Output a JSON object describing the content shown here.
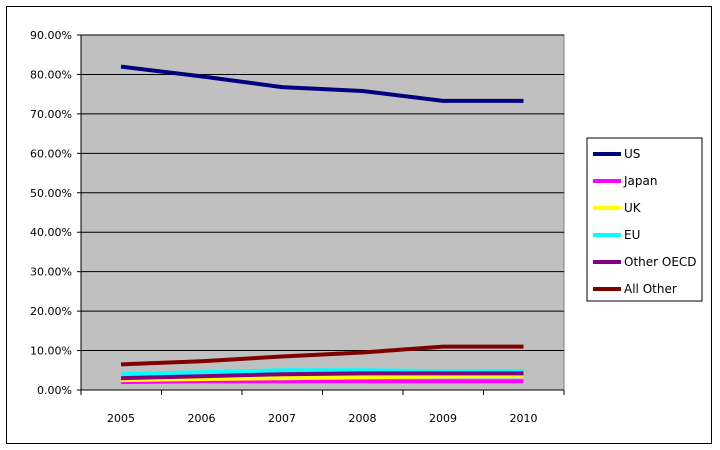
{
  "chart_data": {
    "type": "line",
    "title": "",
    "xlabel": "",
    "ylabel": "",
    "x": [
      "2005",
      "2006",
      "2007",
      "2008",
      "2009",
      "2010"
    ],
    "ylim": [
      0,
      0.9
    ],
    "y_ticks": [
      "0.00%",
      "10.00%",
      "20.00%",
      "30.00%",
      "40.00%",
      "50.00%",
      "60.00%",
      "70.00%",
      "80.00%",
      "90.00%"
    ],
    "grid": "horizontal",
    "legend_position": "right",
    "plot_background": "#c0c0c0",
    "series": [
      {
        "name": "US",
        "color": "#000080",
        "values": [
          0.82,
          0.795,
          0.768,
          0.758,
          0.733,
          0.733
        ]
      },
      {
        "name": "Japan",
        "color": "#ff00ff",
        "values": [
          0.02,
          0.022,
          0.022,
          0.022,
          0.022,
          0.022
        ]
      },
      {
        "name": "UK",
        "color": "#ffff00",
        "values": [
          0.025,
          0.028,
          0.03,
          0.032,
          0.035,
          0.036
        ]
      },
      {
        "name": "EU",
        "color": "#00ffff",
        "values": [
          0.04,
          0.045,
          0.05,
          0.05,
          0.048,
          0.048
        ]
      },
      {
        "name": "Other OECD",
        "color": "#800080",
        "values": [
          0.03,
          0.035,
          0.04,
          0.042,
          0.042,
          0.042
        ]
      },
      {
        "name": "All Other",
        "color": "#800000",
        "values": [
          0.065,
          0.073,
          0.085,
          0.095,
          0.11,
          0.11
        ]
      }
    ]
  }
}
